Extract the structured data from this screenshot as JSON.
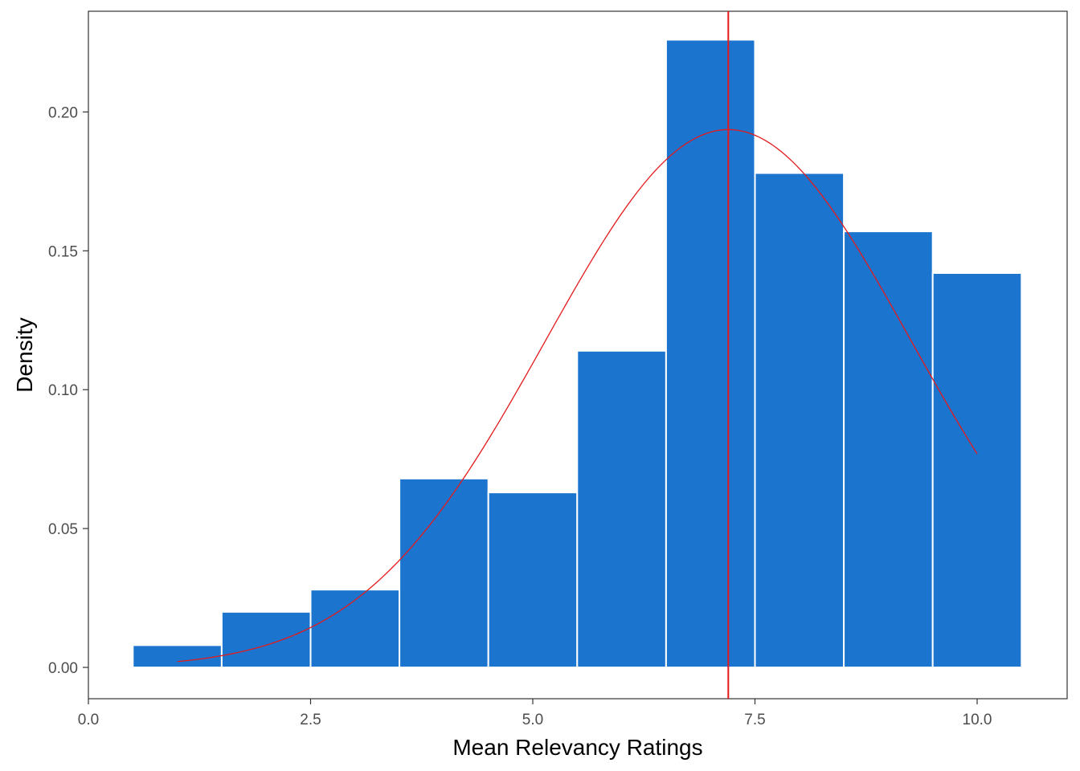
{
  "chart_data": {
    "type": "bar",
    "title": "",
    "xlabel": "Mean Relevancy Ratings",
    "ylabel": "Density",
    "xlim": [
      0,
      10.5
    ],
    "ylim": [
      -0.011,
      0.236
    ],
    "x_ticks": [
      0.0,
      2.5,
      5.0,
      7.5,
      10.0
    ],
    "x_tick_labels": [
      "0.0",
      "2.5",
      "5.0",
      "7.5",
      "10.0"
    ],
    "y_ticks": [
      0.0,
      0.05,
      0.1,
      0.15,
      0.2
    ],
    "y_tick_labels": [
      "0.00",
      "0.05",
      "0.10",
      "0.15",
      "0.20"
    ],
    "grid": false,
    "bins": [
      {
        "x0": 0.5,
        "x1": 1.5,
        "density": 0.008
      },
      {
        "x0": 1.5,
        "x1": 2.5,
        "density": 0.02
      },
      {
        "x0": 2.5,
        "x1": 3.5,
        "density": 0.028
      },
      {
        "x0": 3.5,
        "x1": 4.5,
        "density": 0.068
      },
      {
        "x0": 4.5,
        "x1": 5.5,
        "density": 0.063
      },
      {
        "x0": 5.5,
        "x1": 6.5,
        "density": 0.114
      },
      {
        "x0": 6.5,
        "x1": 7.5,
        "density": 0.226
      },
      {
        "x0": 7.5,
        "x1": 8.5,
        "density": 0.178
      },
      {
        "x0": 8.5,
        "x1": 9.5,
        "density": 0.157
      },
      {
        "x0": 9.5,
        "x1": 10.5,
        "density": 0.142
      }
    ],
    "normal_curve": {
      "mean": 7.2,
      "sd": 2.06,
      "x_range": [
        1,
        10
      ]
    },
    "vline_x": 7.2,
    "colors": {
      "bar_fill": "#1b75cf",
      "bar_stroke": "#ffffff",
      "curve": "#e31a1c",
      "vline": "#e31a1c",
      "panel_border": "#333333",
      "tick_text": "#4d4d4d"
    }
  }
}
